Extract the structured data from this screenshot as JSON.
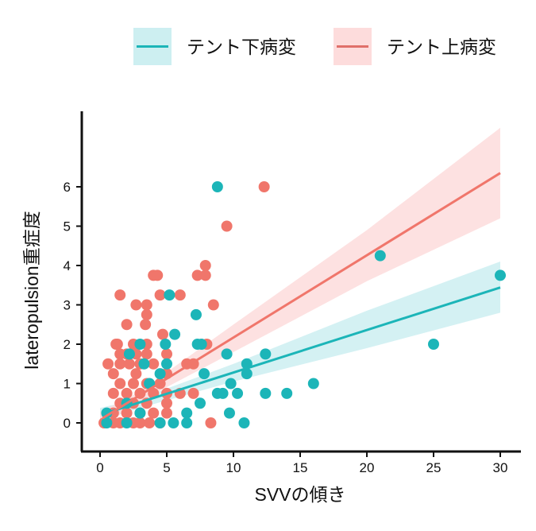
{
  "chart_data": {
    "type": "scatter",
    "title": "",
    "xlabel": "SVVの傾き",
    "ylabel": "lateropulsion重症度",
    "xlim": [
      -1.5,
      31.5
    ],
    "ylim": [
      -0.65,
      7.9
    ],
    "xticks": [
      0,
      5,
      10,
      15,
      20,
      25,
      30
    ],
    "yticks": [
      0,
      1,
      2,
      3,
      4,
      5,
      6
    ],
    "legend_position": "top",
    "grid": false,
    "series": [
      {
        "name": "テント下病変",
        "color": "#1CB5B8",
        "band_color": "#CDEFF1",
        "fit": {
          "intercept": 0.2,
          "slope": 0.108
        },
        "ci": [
          [
            0,
            0.05,
            0.38
          ],
          [
            3,
            0.38,
            0.62
          ],
          [
            10,
            1.05,
            1.5
          ],
          [
            20,
            1.9,
            2.85
          ],
          [
            30,
            2.8,
            4.1
          ]
        ],
        "points": [
          [
            8.8,
            6
          ],
          [
            5.2,
            3.25
          ],
          [
            7.2,
            2.75
          ],
          [
            5.6,
            2.25
          ],
          [
            3,
            2
          ],
          [
            7.3,
            2
          ],
          [
            7.6,
            2
          ],
          [
            4.9,
            2
          ],
          [
            2.2,
            1.75
          ],
          [
            9.5,
            1.75
          ],
          [
            12.4,
            1.75
          ],
          [
            3.3,
            1.5
          ],
          [
            5,
            1.5
          ],
          [
            11,
            1.5
          ],
          [
            4.5,
            1.25
          ],
          [
            7.8,
            1.25
          ],
          [
            11,
            1.25
          ],
          [
            3.7,
            1
          ],
          [
            9.8,
            1
          ],
          [
            16,
            1
          ],
          [
            8.8,
            0.75
          ],
          [
            9.2,
            0.75
          ],
          [
            10.3,
            0.75
          ],
          [
            12.4,
            0.75
          ],
          [
            14,
            0.75
          ],
          [
            2,
            0.5
          ],
          [
            7.5,
            0.5
          ],
          [
            0.5,
            0.25
          ],
          [
            3,
            0.25
          ],
          [
            6.5,
            0.25
          ],
          [
            9.7,
            0.25
          ],
          [
            0.5,
            0
          ],
          [
            2,
            0
          ],
          [
            4.5,
            0
          ],
          [
            5.5,
            0
          ],
          [
            6.5,
            0
          ],
          [
            10.8,
            0
          ],
          [
            21,
            4.25
          ],
          [
            25,
            2
          ],
          [
            30,
            3.75
          ]
        ]
      },
      {
        "name": "テント上病変",
        "color": "#F0766B",
        "band_color": "#FDDCDC",
        "fit": {
          "intercept": 0.08,
          "slope": 0.209
        },
        "ci": [
          [
            0,
            -0.12,
            0.28
          ],
          [
            3,
            0.55,
            0.8
          ],
          [
            10,
            1.8,
            2.5
          ],
          [
            20,
            3.6,
            4.9
          ],
          [
            30,
            5.2,
            7.5
          ]
        ],
        "points": [
          [
            12.3,
            6
          ],
          [
            9.5,
            5
          ],
          [
            4,
            3.75
          ],
          [
            4.3,
            3.75
          ],
          [
            7.3,
            3.75
          ],
          [
            7.9,
            4
          ],
          [
            7.9,
            3.75
          ],
          [
            1.5,
            3.25
          ],
          [
            4.5,
            3.25
          ],
          [
            6,
            3.25
          ],
          [
            2.7,
            3
          ],
          [
            3.5,
            3
          ],
          [
            8.5,
            3
          ],
          [
            3.5,
            2.75
          ],
          [
            3.4,
            2.5
          ],
          [
            2,
            2.5
          ],
          [
            4.7,
            2.25
          ],
          [
            1.3,
            2
          ],
          [
            1.2,
            2
          ],
          [
            2.5,
            2
          ],
          [
            3.5,
            2
          ],
          [
            8,
            2
          ],
          [
            1.5,
            1.75
          ],
          [
            2,
            1.75
          ],
          [
            2.7,
            1.75
          ],
          [
            3.5,
            1.75
          ],
          [
            5,
            1.75
          ],
          [
            0.6,
            1.5
          ],
          [
            1.5,
            1.5
          ],
          [
            2.2,
            1.5
          ],
          [
            3,
            1.5
          ],
          [
            4,
            1.5
          ],
          [
            6.5,
            1.5
          ],
          [
            7,
            1.5
          ],
          [
            1,
            1.25
          ],
          [
            2.7,
            1.25
          ],
          [
            5,
            1.25
          ],
          [
            1.5,
            1
          ],
          [
            2.5,
            1
          ],
          [
            3.5,
            1
          ],
          [
            4.5,
            1
          ],
          [
            1,
            0.75
          ],
          [
            2,
            0.75
          ],
          [
            3,
            0.75
          ],
          [
            4,
            0.75
          ],
          [
            5,
            0.75
          ],
          [
            6,
            0.75
          ],
          [
            7,
            0.75
          ],
          [
            1.5,
            0.5
          ],
          [
            2.5,
            0.5
          ],
          [
            3.5,
            0.5
          ],
          [
            5,
            0.5
          ],
          [
            1,
            0.25
          ],
          [
            2,
            0.25
          ],
          [
            3,
            0.25
          ],
          [
            4,
            0.25
          ],
          [
            5,
            0.25
          ],
          [
            0.3,
            0
          ],
          [
            1,
            0
          ],
          [
            1.5,
            0
          ],
          [
            2.5,
            0
          ],
          [
            3,
            0
          ],
          [
            3.7,
            0
          ],
          [
            4.5,
            0
          ],
          [
            8.3,
            0
          ]
        ]
      }
    ]
  }
}
